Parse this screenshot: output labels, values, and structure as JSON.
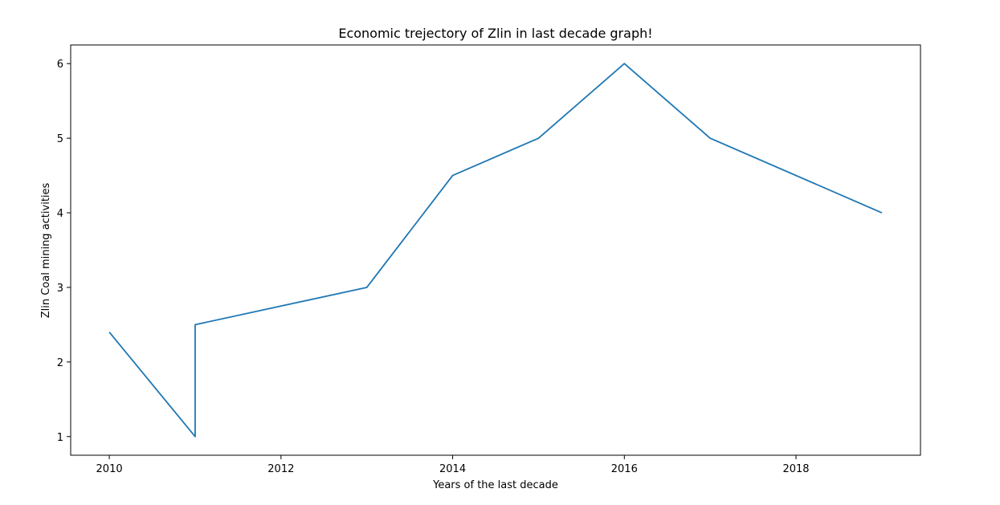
{
  "chart_data": {
    "type": "line",
    "title": "Economic trejectory of Zlin in last decade graph!",
    "xlabel": "Years of the last decade",
    "ylabel": "Zlin Coal mining activities",
    "x": [
      2010,
      2011,
      2011,
      2013,
      2014,
      2015,
      2016,
      2017,
      2019
    ],
    "y": [
      2.4,
      1,
      2.5,
      3,
      4.5,
      5,
      6,
      5,
      4
    ],
    "xlim": [
      2009.55,
      2019.45
    ],
    "ylim": [
      0.75,
      6.25
    ],
    "xticks": [
      2010,
      2012,
      2014,
      2016,
      2018
    ],
    "yticks": [
      1,
      2,
      3,
      4,
      5,
      6
    ],
    "grid": false,
    "legend": null,
    "line_color": "#1f77b4"
  }
}
